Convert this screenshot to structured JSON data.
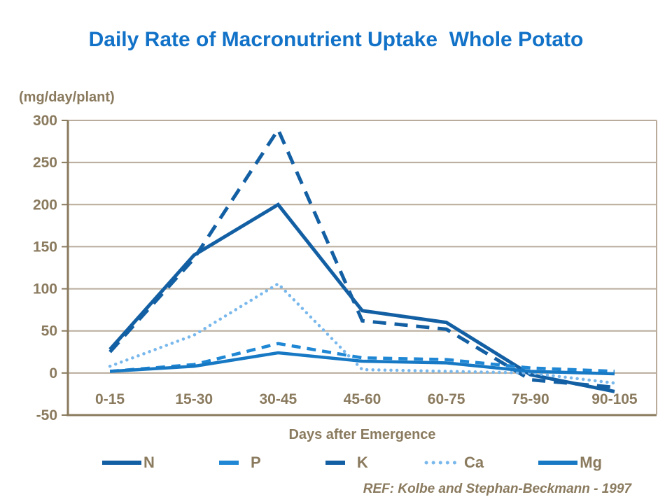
{
  "ref": "REF: Kolbe and Stephan-Beckmann - 1997",
  "colors": {
    "title": "#1272C8",
    "text": "#8A7A5E",
    "grid": "#B9AC9B",
    "axis": "#8A7A5E"
  },
  "chart_data": {
    "type": "line",
    "title": "Daily Rate of Macronutrient Uptake  Whole Potato",
    "ylabel": "(mg/day/plant)",
    "xlabel": "Days after Emergence",
    "categories": [
      "0-15",
      "15-30",
      "30-45",
      "45-60",
      "60-75",
      "75-90",
      "90-105"
    ],
    "series": [
      {
        "name": "N",
        "values": [
          28,
          140,
          200,
          74,
          60,
          -2,
          -22
        ],
        "color": "#135FA3",
        "dash": "solid",
        "width": 5
      },
      {
        "name": "P",
        "values": [
          2,
          10,
          35,
          18,
          16,
          6,
          2
        ],
        "color": "#1F87D4",
        "dash": "dashed",
        "width": 4.5
      },
      {
        "name": "K",
        "values": [
          25,
          136,
          289,
          62,
          52,
          -8,
          -17
        ],
        "color": "#135FA3",
        "dash": "long-dash",
        "width": 5
      },
      {
        "name": "Ca",
        "values": [
          8,
          45,
          106,
          4,
          2,
          0,
          -12
        ],
        "color": "#79B8EC",
        "dash": "dotted",
        "width": 4.5
      },
      {
        "name": "Mg",
        "values": [
          2,
          8,
          24,
          14,
          12,
          2,
          -1
        ],
        "color": "#1778C4",
        "dash": "solid",
        "width": 4.5
      }
    ],
    "ylim": [
      -50,
      300
    ],
    "ytick_step": 50,
    "grid": true,
    "legend_position": "bottom"
  }
}
